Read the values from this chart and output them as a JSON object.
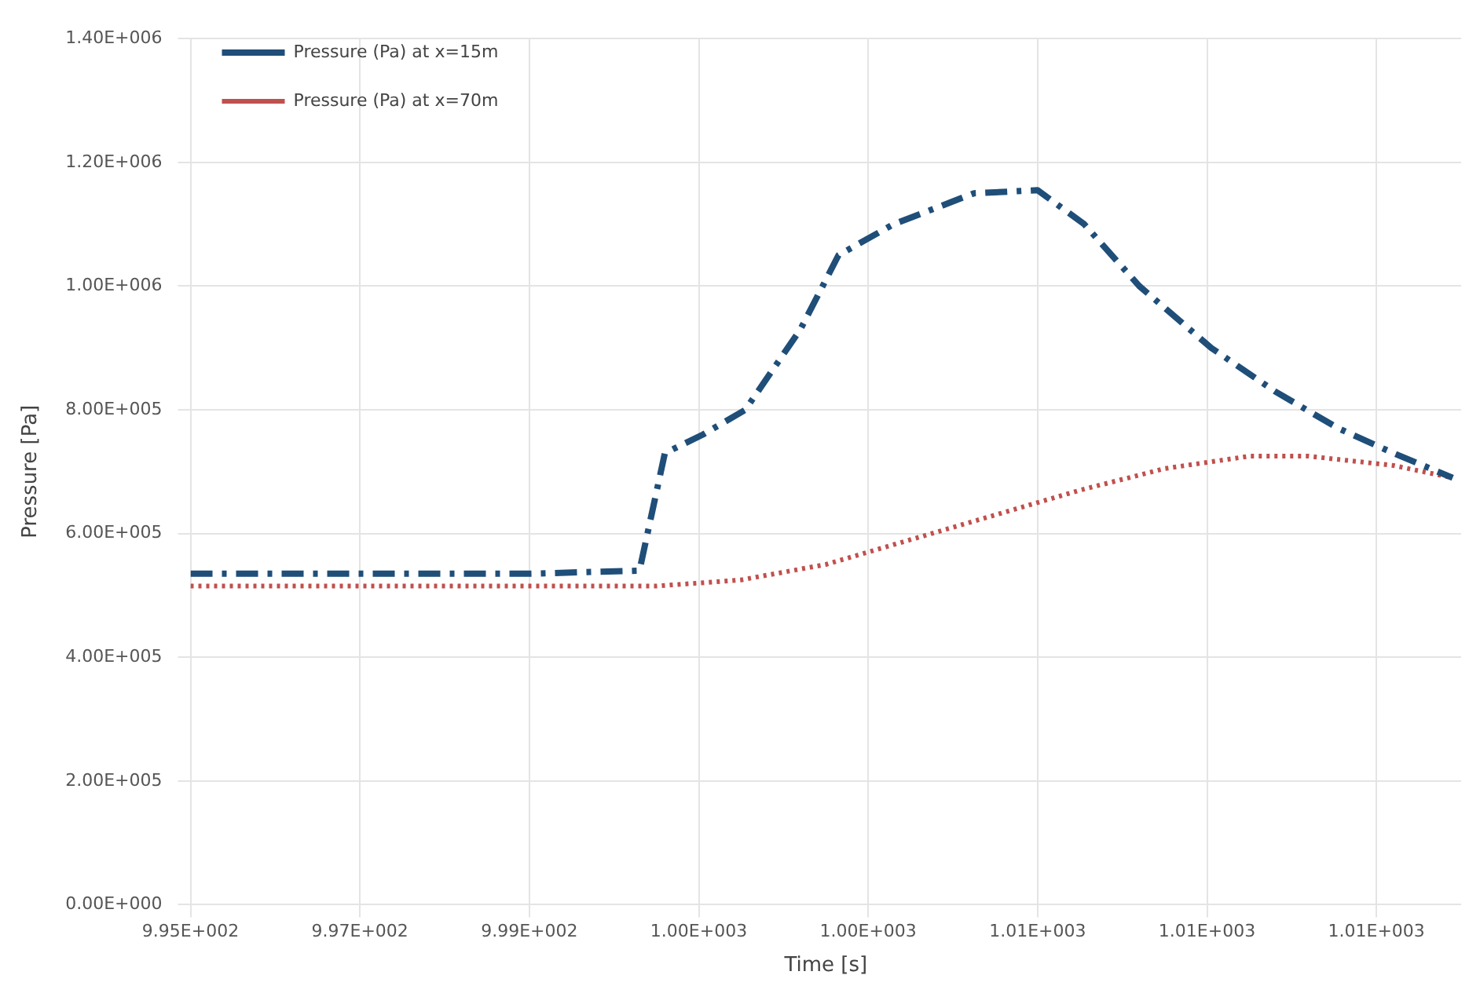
{
  "chart_data": {
    "type": "line",
    "xlabel": "Time [s]",
    "ylabel": "Pressure [Pa]",
    "xlim": [
      995,
      1010
    ],
    "xticks": [
      {
        "value": 995,
        "label": "9.95E+002"
      },
      {
        "value": 997,
        "label": "9.97E+002"
      },
      {
        "value": 999,
        "label": "9.99E+002"
      },
      {
        "value": 1001,
        "label": "1.00E+003"
      },
      {
        "value": 1003,
        "label": "1.00E+003"
      },
      {
        "value": 1005,
        "label": "1.01E+003"
      },
      {
        "value": 1007,
        "label": "1.01E+003"
      },
      {
        "value": 1009,
        "label": "1.01E+003"
      }
    ],
    "ylim": [
      0,
      1400000
    ],
    "yticks": [
      {
        "value": 0,
        "label": "0.00E+000"
      },
      {
        "value": 200000,
        "label": "2.00E+005"
      },
      {
        "value": 400000,
        "label": "4.00E+005"
      },
      {
        "value": 600000,
        "label": "6.00E+005"
      },
      {
        "value": 800000,
        "label": "8.00E+005"
      },
      {
        "value": 1000000,
        "label": "1.00E+006"
      },
      {
        "value": 1200000,
        "label": "1.20E+006"
      },
      {
        "value": 1400000,
        "label": "1.40E+006"
      }
    ],
    "grid": true,
    "legend": "top left",
    "marker": "none",
    "series": [
      {
        "name": "Pressure (Pa) at x=15m",
        "color": "#1f4e79",
        "line_style": "dashed",
        "x": [
          995,
          996,
          997,
          998,
          999,
          1000.3,
          1000.6,
          1001.05,
          1001.55,
          1002.2,
          1002.65,
          1003.3,
          1004.25,
          1005,
          1005.55,
          1006.2,
          1007.05,
          1007.8,
          1008.55,
          1009.2,
          1009.9
        ],
        "values": [
          535000,
          535000,
          535000,
          535000,
          535000,
          540000,
          730000,
          760000,
          800000,
          930000,
          1050000,
          1100000,
          1150000,
          1155000,
          1100000,
          1000000,
          900000,
          830000,
          770000,
          730000,
          690000
        ]
      },
      {
        "name": "Pressure (Pa) at x=70m",
        "color": "#c0504d",
        "line_style": "dotted",
        "x": [
          995,
          997,
          999,
          1000.5,
          1001.5,
          1002.5,
          1003.5,
          1004.5,
          1005.5,
          1006.5,
          1007.5,
          1008.2,
          1009.2,
          1009.9
        ],
        "values": [
          515000,
          515000,
          515000,
          515000,
          525000,
          550000,
          590000,
          630000,
          670000,
          705000,
          725000,
          725000,
          710000,
          690000
        ]
      }
    ]
  }
}
